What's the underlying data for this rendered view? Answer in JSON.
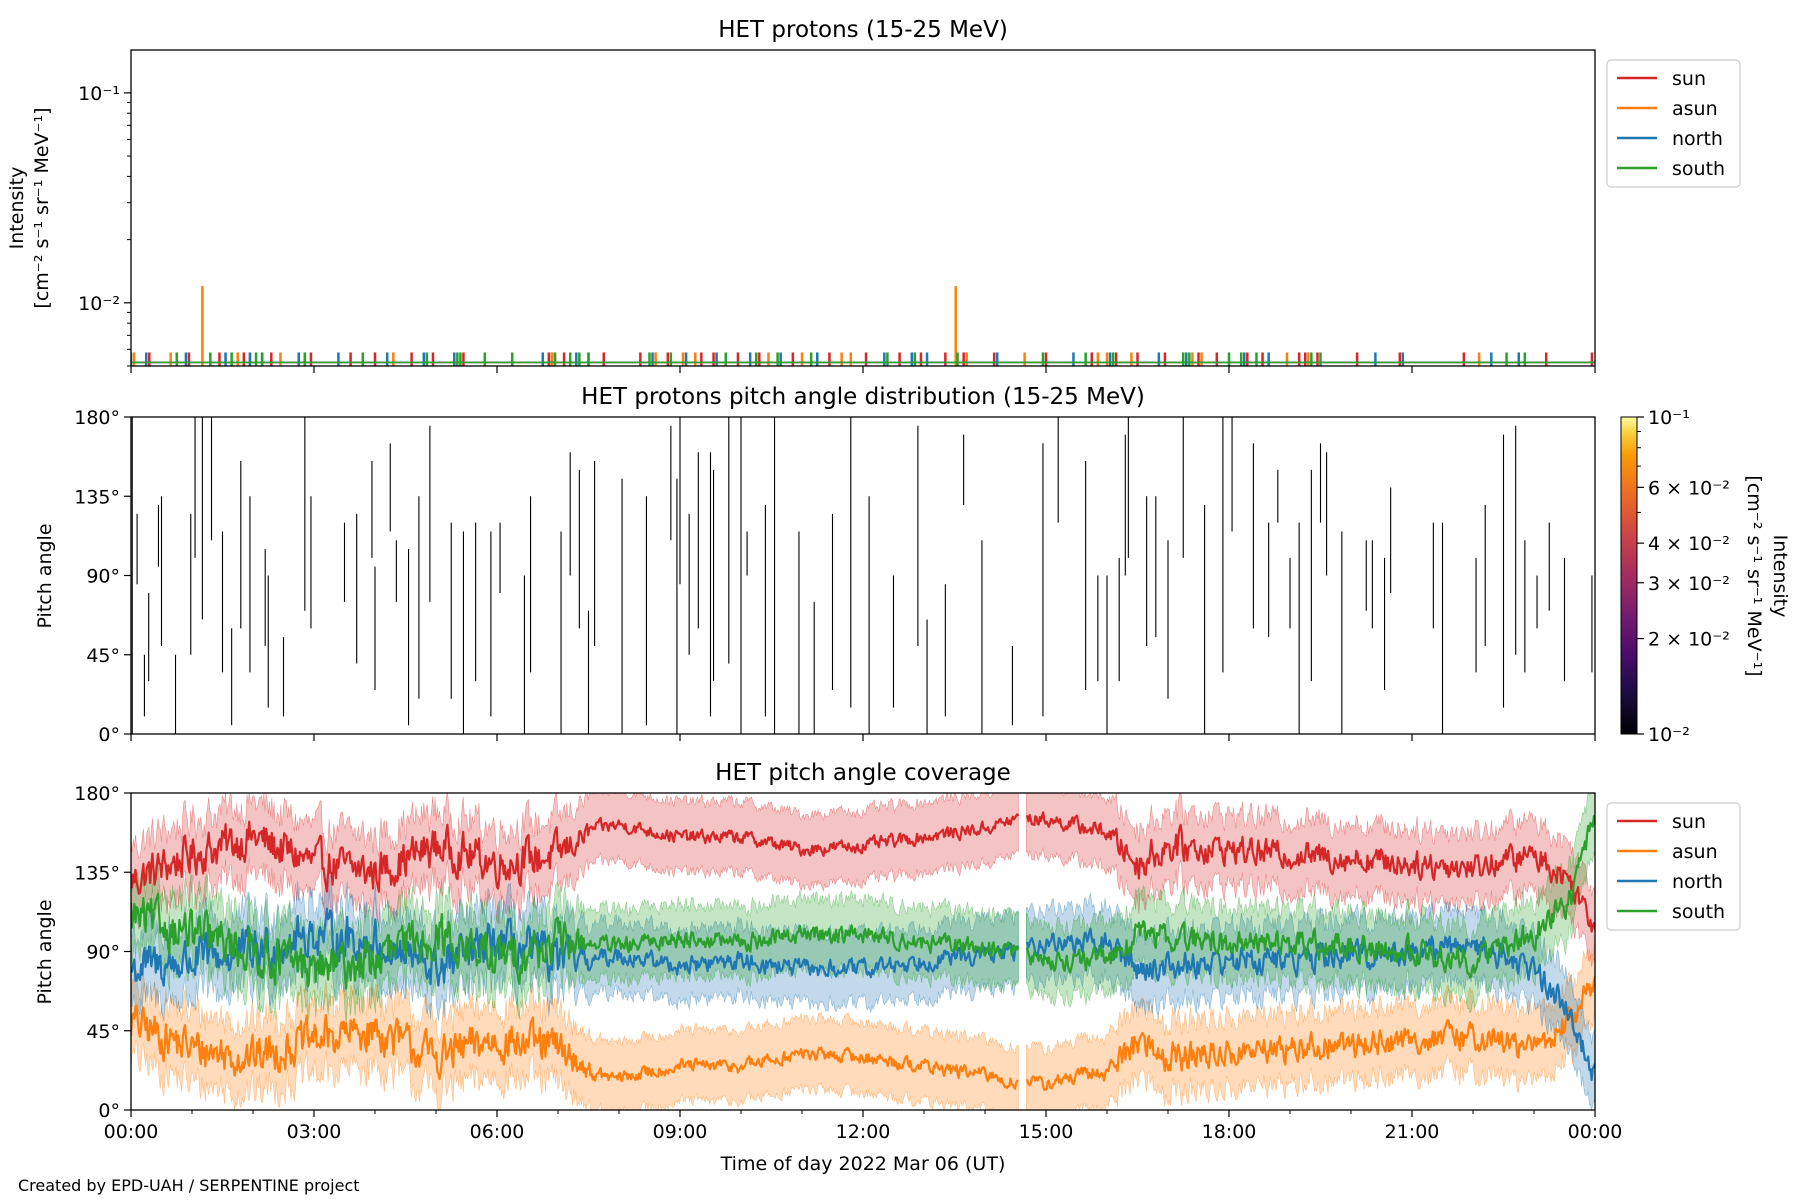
{
  "credit": "Created by EPD-UAH / SERPENTINE project",
  "chart_data": [
    {
      "type": "line",
      "title": "HET protons (15-25 MeV)",
      "ylabel_line1": "Intensity",
      "ylabel_line2": "[cm⁻² s⁻¹ sr⁻¹ MeV⁻¹]",
      "yscale": "log",
      "ylim": [
        0.005,
        0.16
      ],
      "yticks": [
        {
          "value": 0.1,
          "label": "10⁻¹"
        },
        {
          "value": 0.01,
          "label": "10⁻²"
        }
      ],
      "xlim_hours": [
        0,
        24
      ],
      "legend": {
        "placement": "outside-upper-right",
        "entries": [
          "sun",
          "asun",
          "north",
          "south"
        ]
      },
      "series": [
        {
          "name": "sun",
          "color": "#d62728",
          "baseline": 0.0052,
          "spike_value": 0.0058,
          "spike_times_h": [
            0.3,
            0.95,
            1.45,
            1.85,
            2.3,
            2.95,
            3.6,
            4.0,
            4.6,
            4.95,
            5.45,
            6.85,
            6.95,
            7.1,
            7.75,
            8.35,
            8.8,
            9.35,
            9.55,
            9.95,
            10.3,
            10.85,
            11.45,
            12.05,
            12.6,
            12.95,
            13.35,
            13.65,
            14.15,
            15.0,
            15.75,
            16.15,
            16.5,
            16.95,
            17.25,
            17.5,
            17.8,
            18.3,
            18.55,
            19.15,
            19.25,
            19.45,
            20.1,
            20.8,
            21.85,
            23.2,
            23.95
          ]
        },
        {
          "name": "asun",
          "color": "#ff7f0e",
          "baseline": 0.0052,
          "spike_value": 0.0058,
          "spike_times_h": [
            0.05,
            0.65,
            1.75,
            1.95,
            2.45,
            4.3,
            6.9,
            8.6,
            9.05,
            9.25,
            10.45,
            11.0,
            11.65,
            11.8,
            12.85,
            13.7,
            14.65,
            15.85,
            16.0,
            16.4,
            17.4,
            17.55,
            18.95,
            19.3,
            22.1
          ],
          "peaks": [
            {
              "t_h": 1.17,
              "value": 0.012
            },
            {
              "t_h": 13.52,
              "value": 0.012
            }
          ]
        },
        {
          "name": "north",
          "color": "#1f77b4",
          "baseline": 0.0052,
          "spike_value": 0.0058,
          "spike_times_h": [
            0.25,
            0.9,
            1.55,
            1.95,
            2.15,
            2.75,
            2.85,
            3.4,
            4.2,
            4.8,
            5.3,
            6.75,
            7.3,
            7.5,
            8.55,
            9.1,
            9.6,
            10.15,
            10.65,
            11.25,
            12.35,
            12.8,
            13.05,
            14.2,
            15.45,
            16.05,
            16.85,
            17.3,
            18.25,
            18.65,
            20.4,
            20.85,
            22.3,
            22.75
          ]
        },
        {
          "name": "south",
          "color": "#2ca02c",
          "baseline": 0.0052,
          "spike_value": 0.0058,
          "spike_times_h": [
            0.0,
            0.75,
            1.3,
            1.65,
            2.05,
            2.15,
            2.85,
            3.8,
            4.85,
            5.35,
            5.4,
            5.8,
            6.25,
            6.95,
            7.2,
            7.35,
            7.5,
            8.5,
            8.85,
            9.75,
            10.25,
            10.6,
            11.15,
            12.4,
            12.85,
            13.55,
            14.95,
            15.65,
            16.1,
            17.25,
            17.35,
            18.0,
            18.2,
            18.45,
            19.35,
            19.5,
            22.55,
            22.85
          ]
        }
      ]
    },
    {
      "type": "heatmap",
      "title": "HET protons pitch angle distribution (15-25 MeV)",
      "ylabel": "Pitch angle",
      "ylim": [
        0,
        180
      ],
      "yticks": [
        "0°",
        "45°",
        "90°",
        "135°",
        "180°"
      ],
      "xlim_hours": [
        0,
        24
      ],
      "colorbar": {
        "label_line1": "Intensity",
        "label_line2": "[cm⁻² s⁻¹ sr⁻¹ MeV⁻¹]",
        "scale": "log",
        "range": [
          0.01,
          0.1
        ],
        "colormap": "inferno",
        "ticks": [
          {
            "value": 0.1,
            "label": "10⁻¹"
          },
          {
            "value": 0.06,
            "label": "6 × 10⁻²"
          },
          {
            "value": 0.04,
            "label": "4 × 10⁻²"
          },
          {
            "value": 0.03,
            "label": "3 × 10⁻²"
          },
          {
            "value": 0.02,
            "label": "2 × 10⁻²"
          },
          {
            "value": 0.01,
            "label": "10⁻²"
          }
        ]
      },
      "segments": [
        [
          0.02,
          0,
          180
        ],
        [
          0.1,
          85,
          125
        ],
        [
          0.22,
          10,
          45
        ],
        [
          0.29,
          30,
          80
        ],
        [
          0.45,
          95,
          130
        ],
        [
          0.5,
          50,
          135
        ],
        [
          0.73,
          0,
          45
        ],
        [
          0.98,
          45,
          125
        ],
        [
          1.05,
          100,
          180
        ],
        [
          1.17,
          65,
          180
        ],
        [
          1.32,
          110,
          180
        ],
        [
          1.5,
          35,
          115
        ],
        [
          1.65,
          5,
          60
        ],
        [
          1.8,
          60,
          155
        ],
        [
          1.95,
          35,
          135
        ],
        [
          2.2,
          50,
          105
        ],
        [
          2.25,
          15,
          90
        ],
        [
          2.5,
          10,
          55
        ],
        [
          2.85,
          70,
          180
        ],
        [
          2.95,
          60,
          135
        ],
        [
          3.5,
          75,
          120
        ],
        [
          3.7,
          40,
          125
        ],
        [
          3.95,
          100,
          155
        ],
        [
          4.0,
          25,
          95
        ],
        [
          4.25,
          115,
          165
        ],
        [
          4.35,
          75,
          110
        ],
        [
          4.55,
          5,
          105
        ],
        [
          4.72,
          20,
          135
        ],
        [
          4.9,
          75,
          175
        ],
        [
          5.25,
          20,
          120
        ],
        [
          5.45,
          0,
          115
        ],
        [
          5.65,
          30,
          120
        ],
        [
          5.9,
          10,
          115
        ],
        [
          6.05,
          80,
          120
        ],
        [
          6.45,
          0,
          90
        ],
        [
          6.55,
          35,
          135
        ],
        [
          7.05,
          0,
          115
        ],
        [
          7.2,
          90,
          160
        ],
        [
          7.35,
          60,
          150
        ],
        [
          7.5,
          0,
          70
        ],
        [
          7.6,
          50,
          155
        ],
        [
          8.05,
          0,
          145
        ],
        [
          8.45,
          5,
          135
        ],
        [
          8.85,
          110,
          175
        ],
        [
          8.95,
          0,
          145
        ],
        [
          9.0,
          85,
          180
        ],
        [
          9.15,
          45,
          125
        ],
        [
          9.3,
          60,
          160
        ],
        [
          9.5,
          10,
          160
        ],
        [
          9.55,
          30,
          150
        ],
        [
          9.8,
          40,
          180
        ],
        [
          10.0,
          0,
          180
        ],
        [
          10.1,
          90,
          115
        ],
        [
          10.4,
          10,
          130
        ],
        [
          10.55,
          0,
          180
        ],
        [
          10.95,
          0,
          115
        ],
        [
          11.2,
          0,
          75
        ],
        [
          11.5,
          25,
          125
        ],
        [
          11.8,
          15,
          180
        ],
        [
          12.1,
          0,
          135
        ],
        [
          12.5,
          15,
          90
        ],
        [
          12.9,
          50,
          175
        ],
        [
          13.05,
          0,
          65
        ],
        [
          13.35,
          10,
          85
        ],
        [
          13.65,
          130,
          170
        ],
        [
          13.95,
          0,
          110
        ],
        [
          14.45,
          5,
          50
        ],
        [
          14.95,
          10,
          165
        ],
        [
          15.2,
          120,
          180
        ],
        [
          15.65,
          25,
          155
        ],
        [
          15.85,
          30,
          90
        ],
        [
          16.0,
          0,
          90
        ],
        [
          16.2,
          30,
          100
        ],
        [
          16.3,
          90,
          170
        ],
        [
          16.35,
          100,
          180
        ],
        [
          16.65,
          50,
          135
        ],
        [
          16.8,
          55,
          135
        ],
        [
          17.0,
          20,
          110
        ],
        [
          17.25,
          100,
          180
        ],
        [
          17.6,
          0,
          130
        ],
        [
          17.9,
          35,
          180
        ],
        [
          18.05,
          115,
          180
        ],
        [
          18.4,
          60,
          165
        ],
        [
          18.65,
          55,
          120
        ],
        [
          18.8,
          120,
          150
        ],
        [
          19.0,
          60,
          100
        ],
        [
          19.15,
          0,
          120
        ],
        [
          19.35,
          30,
          150
        ],
        [
          19.5,
          120,
          165
        ],
        [
          19.6,
          90,
          160
        ],
        [
          19.85,
          0,
          115
        ],
        [
          20.25,
          70,
          110
        ],
        [
          20.35,
          60,
          110
        ],
        [
          20.55,
          25,
          100
        ],
        [
          20.65,
          80,
          140
        ],
        [
          21.35,
          60,
          120
        ],
        [
          21.5,
          0,
          120
        ],
        [
          22.05,
          35,
          100
        ],
        [
          22.2,
          50,
          130
        ],
        [
          22.5,
          15,
          170
        ],
        [
          22.7,
          45,
          175
        ],
        [
          22.85,
          35,
          110
        ],
        [
          23.05,
          60,
          90
        ],
        [
          23.25,
          70,
          120
        ],
        [
          23.5,
          30,
          100
        ],
        [
          23.95,
          35,
          90
        ]
      ]
    },
    {
      "type": "area",
      "title": "HET pitch angle coverage",
      "ylabel": "Pitch angle",
      "xlabel": "Time of day 2022 Mar 06 (UT)",
      "ylim": [
        0,
        180
      ],
      "yticks": [
        "0°",
        "45°",
        "90°",
        "135°",
        "180°"
      ],
      "x": [
        "00:00",
        "03:00",
        "06:00",
        "09:00",
        "12:00",
        "15:00",
        "18:00",
        "21:00",
        "00:00"
      ],
      "legend": {
        "placement": "outside-upper-right",
        "entries": [
          "sun",
          "asun",
          "north",
          "south"
        ]
      },
      "band_half_width_deg": 20,
      "gap_hours": [
        14.55,
        14.67
      ],
      "series": [
        {
          "name": "sun",
          "color": "#d62728",
          "time_h": [
            0,
            1,
            2,
            3,
            4,
            5,
            6,
            7,
            7.6,
            8,
            9,
            10,
            11,
            12,
            13,
            14,
            14.5,
            15,
            16,
            16.5,
            17,
            18,
            19,
            20,
            21,
            22,
            23,
            23.6,
            24
          ],
          "mean_deg": [
            130,
            145,
            155,
            140,
            135,
            150,
            140,
            145,
            160,
            162,
            155,
            155,
            148,
            150,
            155,
            160,
            165,
            165,
            158,
            140,
            150,
            148,
            145,
            143,
            140,
            138,
            145,
            130,
            105
          ],
          "noise_deg": [
            18,
            18,
            18,
            18,
            18,
            18,
            18,
            18,
            6,
            6,
            6,
            6,
            6,
            6,
            6,
            6,
            6,
            6,
            8,
            15,
            15,
            12,
            12,
            12,
            12,
            12,
            12,
            12,
            12
          ]
        },
        {
          "name": "asun",
          "color": "#ff7f0e",
          "time_h": [
            0,
            1,
            2,
            3,
            4,
            5,
            6,
            7,
            7.6,
            8,
            9,
            10,
            11,
            12,
            13,
            14,
            14.5,
            15,
            16,
            16.5,
            17,
            18,
            19,
            20,
            21,
            22,
            23,
            23.6,
            24
          ],
          "mean_deg": [
            50,
            35,
            30,
            40,
            45,
            30,
            40,
            35,
            20,
            18,
            25,
            25,
            32,
            30,
            25,
            20,
            15,
            15,
            22,
            40,
            30,
            32,
            35,
            37,
            40,
            42,
            35,
            50,
            75
          ],
          "noise_deg": [
            18,
            18,
            18,
            18,
            18,
            18,
            18,
            18,
            6,
            6,
            6,
            6,
            6,
            6,
            6,
            6,
            6,
            6,
            8,
            15,
            15,
            12,
            12,
            12,
            12,
            12,
            12,
            12,
            12
          ]
        },
        {
          "name": "north",
          "color": "#1f77b4",
          "time_h": [
            0,
            1,
            2,
            3,
            4,
            5,
            6,
            7,
            7.6,
            8,
            9,
            10,
            11,
            12,
            13,
            14,
            14.5,
            15,
            16,
            16.5,
            17,
            18,
            19,
            20,
            21,
            22,
            23,
            23.6,
            24
          ],
          "mean_deg": [
            80,
            85,
            90,
            100,
            95,
            80,
            95,
            85,
            85,
            88,
            82,
            85,
            80,
            80,
            85,
            88,
            90,
            95,
            95,
            80,
            82,
            85,
            85,
            88,
            90,
            95,
            80,
            55,
            20
          ],
          "noise_deg": [
            20,
            20,
            20,
            20,
            20,
            20,
            20,
            20,
            8,
            8,
            8,
            8,
            8,
            8,
            8,
            8,
            8,
            8,
            10,
            12,
            12,
            12,
            12,
            12,
            12,
            12,
            12,
            12,
            12
          ]
        },
        {
          "name": "south",
          "color": "#2ca02c",
          "time_h": [
            0,
            1,
            2,
            3,
            4,
            5,
            6,
            7,
            7.6,
            8,
            9,
            10,
            11,
            12,
            13,
            14,
            14.5,
            15,
            16,
            16.5,
            17,
            18,
            19,
            20,
            21,
            22,
            23,
            23.6,
            24
          ],
          "mean_deg": [
            110,
            100,
            90,
            80,
            85,
            100,
            85,
            95,
            95,
            92,
            98,
            95,
            100,
            100,
            95,
            92,
            90,
            85,
            85,
            100,
            98,
            95,
            95,
            92,
            90,
            85,
            100,
            120,
            165
          ],
          "noise_deg": [
            20,
            20,
            20,
            20,
            20,
            20,
            20,
            20,
            8,
            8,
            8,
            8,
            8,
            8,
            8,
            8,
            8,
            8,
            10,
            12,
            12,
            12,
            12,
            12,
            12,
            12,
            12,
            12,
            12
          ]
        }
      ]
    }
  ]
}
